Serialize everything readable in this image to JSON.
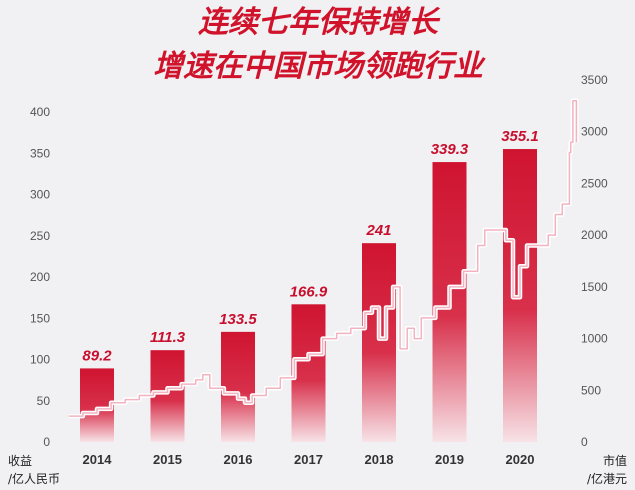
{
  "chart_data": {
    "type": "bar",
    "title": "连续七年保持增长",
    "subtitle": "增速在中国市场领跑行业",
    "categories": [
      "2014",
      "2015",
      "2016",
      "2017",
      "2018",
      "2019",
      "2020"
    ],
    "series": [
      {
        "name": "收益",
        "type": "bar",
        "values": [
          89.2,
          111.3,
          133.5,
          166.9,
          241,
          339.3,
          355.1
        ]
      }
    ],
    "data_labels": [
      "89.2",
      "111.3",
      "133.5",
      "166.9",
      "241",
      "339.3",
      "355.1"
    ],
    "ylabel_left": "收益 /亿人民币",
    "ylabel_left_lines": [
      "收益",
      "/亿人民币"
    ],
    "ylabel_right": "市值 /亿港元",
    "ylabel_right_lines": [
      "市值",
      "/亿港元"
    ],
    "ylim_left": [
      0,
      400
    ],
    "yticks_left": [
      0,
      50,
      100,
      150,
      200,
      250,
      300,
      350,
      400
    ],
    "ylim_right": [
      0,
      3500
    ],
    "yticks_right": [
      0,
      500,
      1000,
      1500,
      2000,
      2500,
      3000,
      3500
    ],
    "market_cap_line": {
      "axis": "right",
      "x": [
        2013.6,
        2013.8,
        2014.0,
        2014.2,
        2014.4,
        2014.6,
        2014.8,
        2015.0,
        2015.2,
        2015.4,
        2015.5,
        2015.6,
        2015.8,
        2016.0,
        2016.1,
        2016.2,
        2016.4,
        2016.6,
        2016.8,
        2017.0,
        2017.2,
        2017.4,
        2017.6,
        2017.8,
        2017.9,
        2018.0,
        2018.1,
        2018.2,
        2018.3,
        2018.4,
        2018.5,
        2018.6,
        2018.8,
        2019.0,
        2019.2,
        2019.4,
        2019.5,
        2019.6,
        2019.8,
        2019.9,
        2020.0,
        2020.1,
        2020.2,
        2020.4,
        2020.5,
        2020.6,
        2020.7,
        2020.72,
        2020.75,
        2020.8
      ],
      "values": [
        250,
        280,
        320,
        380,
        410,
        450,
        480,
        520,
        560,
        600,
        650,
        520,
        470,
        420,
        380,
        450,
        520,
        620,
        800,
        850,
        1000,
        1050,
        1100,
        1250,
        1300,
        1000,
        1300,
        1500,
        900,
        1100,
        1000,
        1200,
        1300,
        1500,
        1650,
        1900,
        2050,
        2050,
        1950,
        1400,
        1700,
        1900,
        1900,
        2000,
        2200,
        2300,
        2800,
        2900,
        3300,
        2900
      ]
    },
    "grid": false,
    "legend": "none"
  }
}
